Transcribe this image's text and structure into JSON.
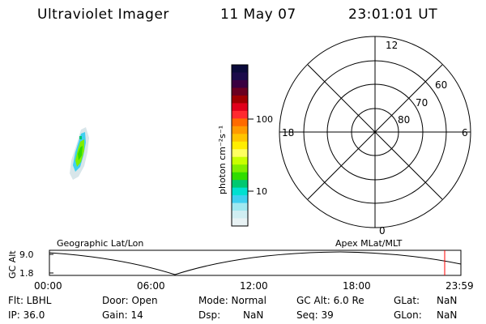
{
  "header": {
    "title": "Ultraviolet Imager",
    "date": "11 May 07",
    "time": "23:01:01 UT"
  },
  "colorbar": {
    "label": "photon cm⁻²s⁻¹",
    "ticks": [
      "100",
      "10"
    ],
    "colors": [
      "#0a0a3a",
      "#1a0a4a",
      "#3a0040",
      "#6a0020",
      "#a00000",
      "#e0001a",
      "#ff2a30",
      "#ff6a00",
      "#ff9a00",
      "#ffc400",
      "#ffee00",
      "#ffff60",
      "#c8ff00",
      "#80ee00",
      "#30dd00",
      "#00c870",
      "#00e0d0",
      "#40d0f0",
      "#a0e8f0",
      "#d0eef2",
      "#e8f2f4"
    ]
  },
  "polar": {
    "mlt_labels": {
      "top": "12",
      "left": "18",
      "right": "6",
      "bottom": "0"
    },
    "lat_labels": [
      "60",
      "70",
      "80"
    ]
  },
  "track": {
    "left_label": "Geographic Lat/Lon",
    "right_label": "Apex MLat/MLT",
    "y_title": "GC Alt",
    "y_ticks": [
      "9.0",
      "1.8"
    ],
    "x_ticks": [
      "00:00",
      "06:00",
      "12:00",
      "18:00",
      "23:59"
    ],
    "marker_color": "#ff0000"
  },
  "info": {
    "filter": "Flt: LBHL",
    "door": "Door: Open",
    "mode": "Mode: Normal",
    "gc_alt": "GC Alt: 6.0 Re",
    "glat_label": "GLat:",
    "glat_value": "NaN",
    "ip": "IP: 36.0",
    "gain": "Gain: 14",
    "dsp_label": "Dsp:",
    "dsp_value": "NaN",
    "seq": "Seq: 39",
    "glon_label": "GLon:",
    "glon_value": "NaN"
  }
}
